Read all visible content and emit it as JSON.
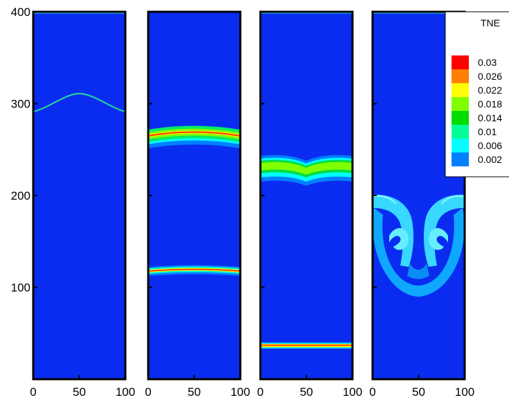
{
  "chart_data": {
    "type": "heatmap",
    "panel_count": 4,
    "x_ticks": [
      "0",
      "50",
      "100"
    ],
    "y_ticks": [
      "100",
      "200",
      "300",
      "400"
    ],
    "xlim": [
      0,
      100
    ],
    "ylim": [
      0,
      400
    ],
    "colorbar": {
      "title": "TNE",
      "levels": [
        {
          "label": "0.03",
          "color": "#ff0000"
        },
        {
          "label": "0.026",
          "color": "#ff8000"
        },
        {
          "label": "0.022",
          "color": "#ffff00"
        },
        {
          "label": "0.018",
          "color": "#80ff00"
        },
        {
          "label": "0.014",
          "color": "#00dd00"
        },
        {
          "label": "0.01",
          "color": "#00ff99"
        },
        {
          "label": "0.006",
          "color": "#00ffff"
        },
        {
          "label": "0.002",
          "color": "#0080ff"
        }
      ]
    },
    "background_color": "#0a2cf0"
  }
}
